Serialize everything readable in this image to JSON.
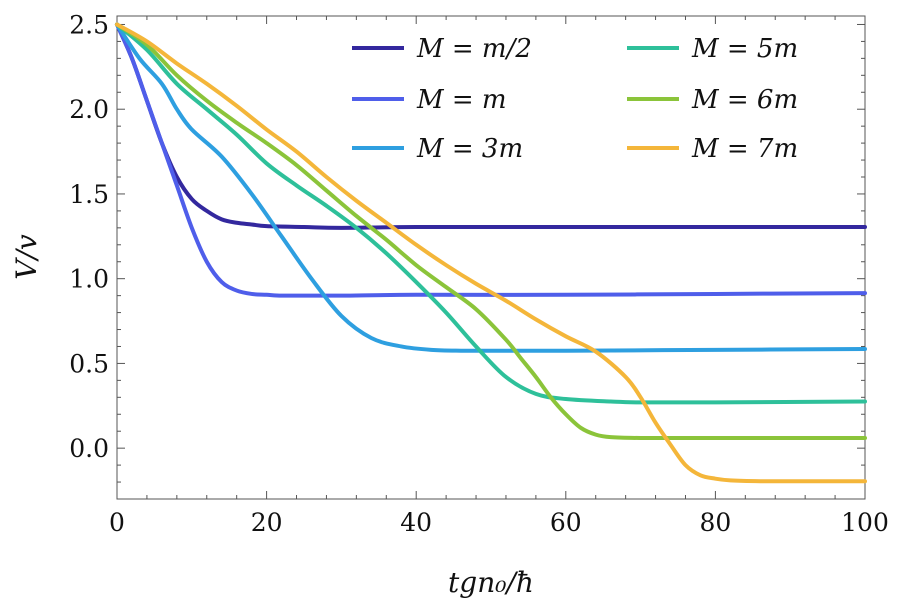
{
  "chart_data": {
    "type": "line",
    "title": "",
    "xlabel": "tgn₀/ħ",
    "ylabel": "V/v",
    "xlim": [
      0,
      100
    ],
    "ylim": [
      -0.3,
      2.55
    ],
    "xticks": [
      0,
      20,
      40,
      60,
      80,
      100
    ],
    "xtick_labels": [
      "0",
      "20",
      "40",
      "60",
      "80",
      "100"
    ],
    "yticks": [
      0.0,
      0.5,
      1.0,
      1.5,
      2.0,
      2.5
    ],
    "ytick_labels": [
      "0.0",
      "0.5",
      "1.0",
      "1.5",
      "2.0",
      "2.5"
    ],
    "grid": false,
    "legend_position": "top-right",
    "series": [
      {
        "name": "M = m/2",
        "color": "#33289e",
        "x": [
          0,
          2,
          4,
          6,
          8,
          10,
          12,
          14,
          16,
          18,
          20,
          25,
          30,
          40,
          60,
          80,
          100
        ],
        "y": [
          2.5,
          2.3,
          2.05,
          1.8,
          1.6,
          1.47,
          1.4,
          1.35,
          1.33,
          1.32,
          1.31,
          1.305,
          1.3,
          1.305,
          1.305,
          1.305,
          1.305
        ]
      },
      {
        "name": "M = m",
        "color": "#4f5eea",
        "x": [
          0,
          2,
          4,
          6,
          8,
          10,
          12,
          14,
          16,
          18,
          20,
          22,
          25,
          30,
          40,
          60,
          80,
          100
        ],
        "y": [
          2.5,
          2.3,
          2.05,
          1.8,
          1.55,
          1.3,
          1.1,
          0.98,
          0.93,
          0.91,
          0.905,
          0.9,
          0.9,
          0.9,
          0.905,
          0.905,
          0.91,
          0.915
        ]
      },
      {
        "name": "M = 3m",
        "color": "#2e9fe0",
        "x": [
          0,
          3,
          6,
          8,
          10,
          14,
          18,
          22,
          26,
          30,
          34,
          38,
          42,
          46,
          50,
          60,
          80,
          100
        ],
        "y": [
          2.5,
          2.3,
          2.15,
          2.0,
          1.88,
          1.72,
          1.5,
          1.25,
          1.0,
          0.78,
          0.65,
          0.6,
          0.58,
          0.575,
          0.575,
          0.575,
          0.58,
          0.585
        ]
      },
      {
        "name": "M = 5m",
        "color": "#2ec09a",
        "x": [
          0,
          4,
          8,
          12,
          16,
          20,
          24,
          28,
          32,
          36,
          40,
          44,
          48,
          52,
          56,
          60,
          66,
          70,
          80,
          100
        ],
        "y": [
          2.5,
          2.35,
          2.15,
          2.0,
          1.85,
          1.68,
          1.55,
          1.43,
          1.3,
          1.15,
          0.98,
          0.8,
          0.6,
          0.42,
          0.32,
          0.29,
          0.275,
          0.27,
          0.27,
          0.275
        ]
      },
      {
        "name": "M = 6m",
        "color": "#8bc43a",
        "x": [
          0,
          4,
          8,
          12,
          16,
          20,
          24,
          28,
          32,
          36,
          40,
          44,
          48,
          52,
          54,
          56,
          58,
          60,
          62,
          64,
          66,
          70,
          80,
          100
        ],
        "y": [
          2.5,
          2.38,
          2.2,
          2.05,
          1.92,
          1.8,
          1.67,
          1.52,
          1.37,
          1.23,
          1.08,
          0.95,
          0.82,
          0.64,
          0.53,
          0.42,
          0.3,
          0.2,
          0.12,
          0.08,
          0.065,
          0.06,
          0.06,
          0.06
        ]
      },
      {
        "name": "M = 7m",
        "color": "#f4b63a",
        "x": [
          0,
          4,
          8,
          12,
          16,
          20,
          24,
          28,
          32,
          36,
          40,
          44,
          48,
          52,
          56,
          60,
          64,
          68,
          70,
          72,
          74,
          76,
          78,
          80,
          82,
          86,
          90,
          100
        ],
        "y": [
          2.5,
          2.4,
          2.27,
          2.15,
          2.02,
          1.88,
          1.75,
          1.6,
          1.46,
          1.33,
          1.2,
          1.08,
          0.97,
          0.87,
          0.76,
          0.66,
          0.57,
          0.42,
          0.3,
          0.15,
          0.02,
          -0.1,
          -0.16,
          -0.18,
          -0.19,
          -0.195,
          -0.195,
          -0.195
        ]
      }
    ]
  }
}
